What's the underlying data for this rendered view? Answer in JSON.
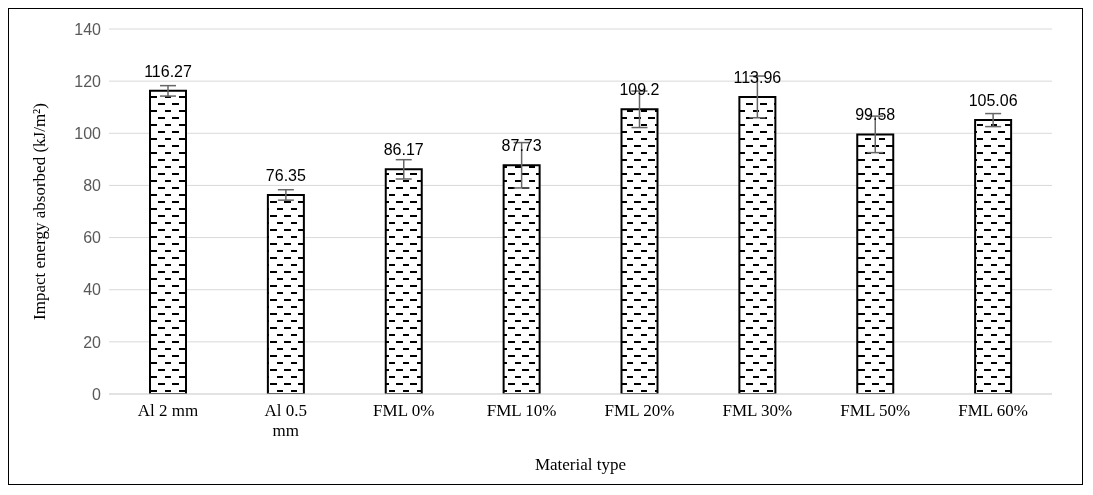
{
  "chart_data": {
    "type": "bar",
    "xlabel": "Material type",
    "ylabel": "Impact energy absorbed (kJ/m²)",
    "categories": [
      "Al 2 mm",
      "Al 0.5 mm",
      "FML 0%",
      "FML 10%",
      "FML 20%",
      "FML 30%",
      "FML 50%",
      "FML 60%"
    ],
    "values": [
      116.27,
      76.35,
      86.17,
      87.73,
      109.2,
      113.96,
      99.58,
      105.06
    ],
    "errors": [
      2,
      2,
      3.7,
      8.7,
      7,
      8,
      7,
      2.5
    ],
    "color": "#000000",
    "ylim": [
      0,
      140
    ],
    "yticks": [
      0,
      20,
      40,
      60,
      80,
      100,
      120,
      140
    ],
    "grid": "y",
    "data_labels": true
  }
}
